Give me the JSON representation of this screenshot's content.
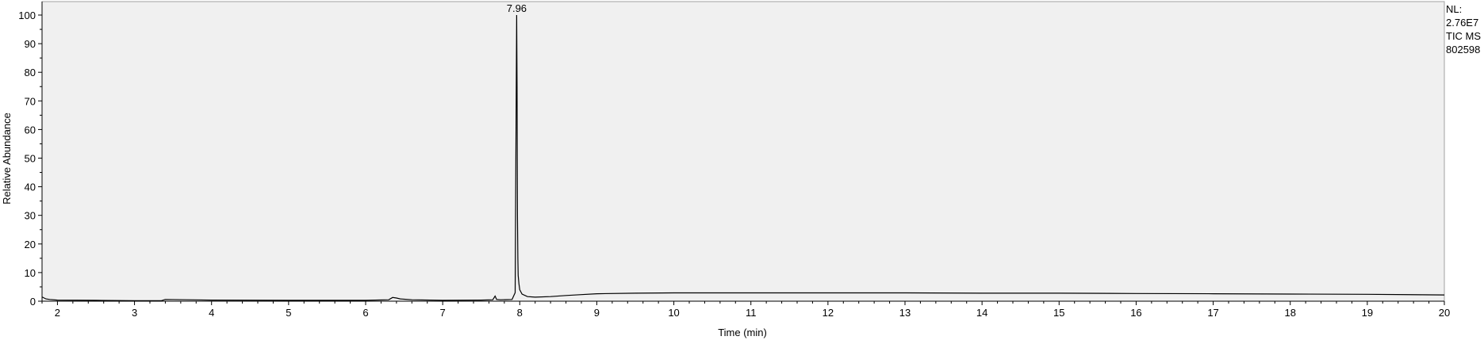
{
  "chart_data": {
    "type": "line",
    "title": "",
    "xlabel": "Time (min)",
    "ylabel": "Relative Abundance",
    "xlim": [
      1.8,
      20.0
    ],
    "ylim": [
      0,
      100
    ],
    "x_ticks": [
      2,
      3,
      4,
      5,
      6,
      7,
      8,
      9,
      10,
      11,
      12,
      13,
      14,
      15,
      16,
      17,
      18,
      19,
      20
    ],
    "y_ticks": [
      0,
      10,
      20,
      30,
      40,
      50,
      60,
      70,
      80,
      90,
      100
    ],
    "peak_annotation": {
      "label": "7.96",
      "x": 7.96,
      "y": 100
    },
    "series": [
      {
        "x": [
          1.8,
          1.85,
          1.9,
          2.0,
          2.5,
          3.0,
          3.35,
          3.4,
          4.0,
          5.0,
          6.0,
          6.3,
          6.35,
          6.4,
          6.45,
          6.6,
          7.0,
          7.5,
          7.65,
          7.68,
          7.7,
          7.75,
          7.9,
          7.94,
          7.95,
          7.96,
          7.965,
          7.97,
          7.975,
          7.98,
          7.99,
          8.0,
          8.03,
          8.1,
          8.2,
          8.4,
          8.6,
          8.8,
          9.0,
          9.5,
          10.0,
          11.0,
          12.0,
          13.0,
          14.0,
          15.0,
          16.0,
          17.0,
          18.0,
          19.0,
          20.0
        ],
        "y": [
          1.5,
          0.8,
          0.6,
          0.4,
          0.3,
          0.2,
          0.2,
          0.6,
          0.4,
          0.3,
          0.3,
          0.5,
          1.3,
          1.1,
          0.8,
          0.5,
          0.3,
          0.4,
          0.5,
          1.8,
          0.6,
          0.5,
          0.6,
          3.0,
          50.0,
          100.0,
          75.0,
          30.0,
          15.0,
          9.0,
          6.0,
          4.0,
          2.5,
          1.6,
          1.4,
          1.6,
          2.0,
          2.3,
          2.6,
          2.8,
          2.9,
          2.9,
          2.9,
          2.9,
          2.8,
          2.8,
          2.7,
          2.6,
          2.5,
          2.4,
          2.2
        ]
      }
    ]
  },
  "info": {
    "line1": "NL:",
    "line2": "2.76E7",
    "line3": "TIC  MS",
    "line4": "802598"
  },
  "colors": {
    "plot_background": "#f0f0f0",
    "trace": "#000000",
    "frame": "#a0a0a0"
  }
}
